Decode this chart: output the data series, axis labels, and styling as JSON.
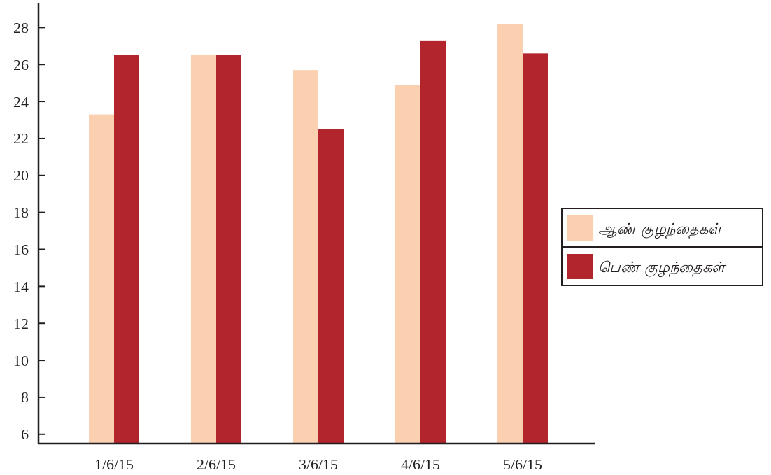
{
  "chart_data": {
    "type": "bar",
    "categories": [
      "1/6/15",
      "2/6/15",
      "3/6/15",
      "4/6/15",
      "5/6/15"
    ],
    "series": [
      {
        "name": "ஆண் குழந்தைகள்",
        "color": "#fbd0b0",
        "values": [
          23.3,
          26.5,
          25.7,
          24.9,
          28.2
        ]
      },
      {
        "name": "பெண் குழந்தைகள்",
        "color": "#b2252d",
        "values": [
          26.5,
          26.5,
          22.5,
          27.3,
          26.6
        ]
      }
    ],
    "ylim": [
      5.5,
      29.3
    ],
    "yticks": [
      6,
      8,
      10,
      12,
      14,
      16,
      18,
      20,
      22,
      24,
      26,
      28
    ],
    "legend": "right"
  }
}
